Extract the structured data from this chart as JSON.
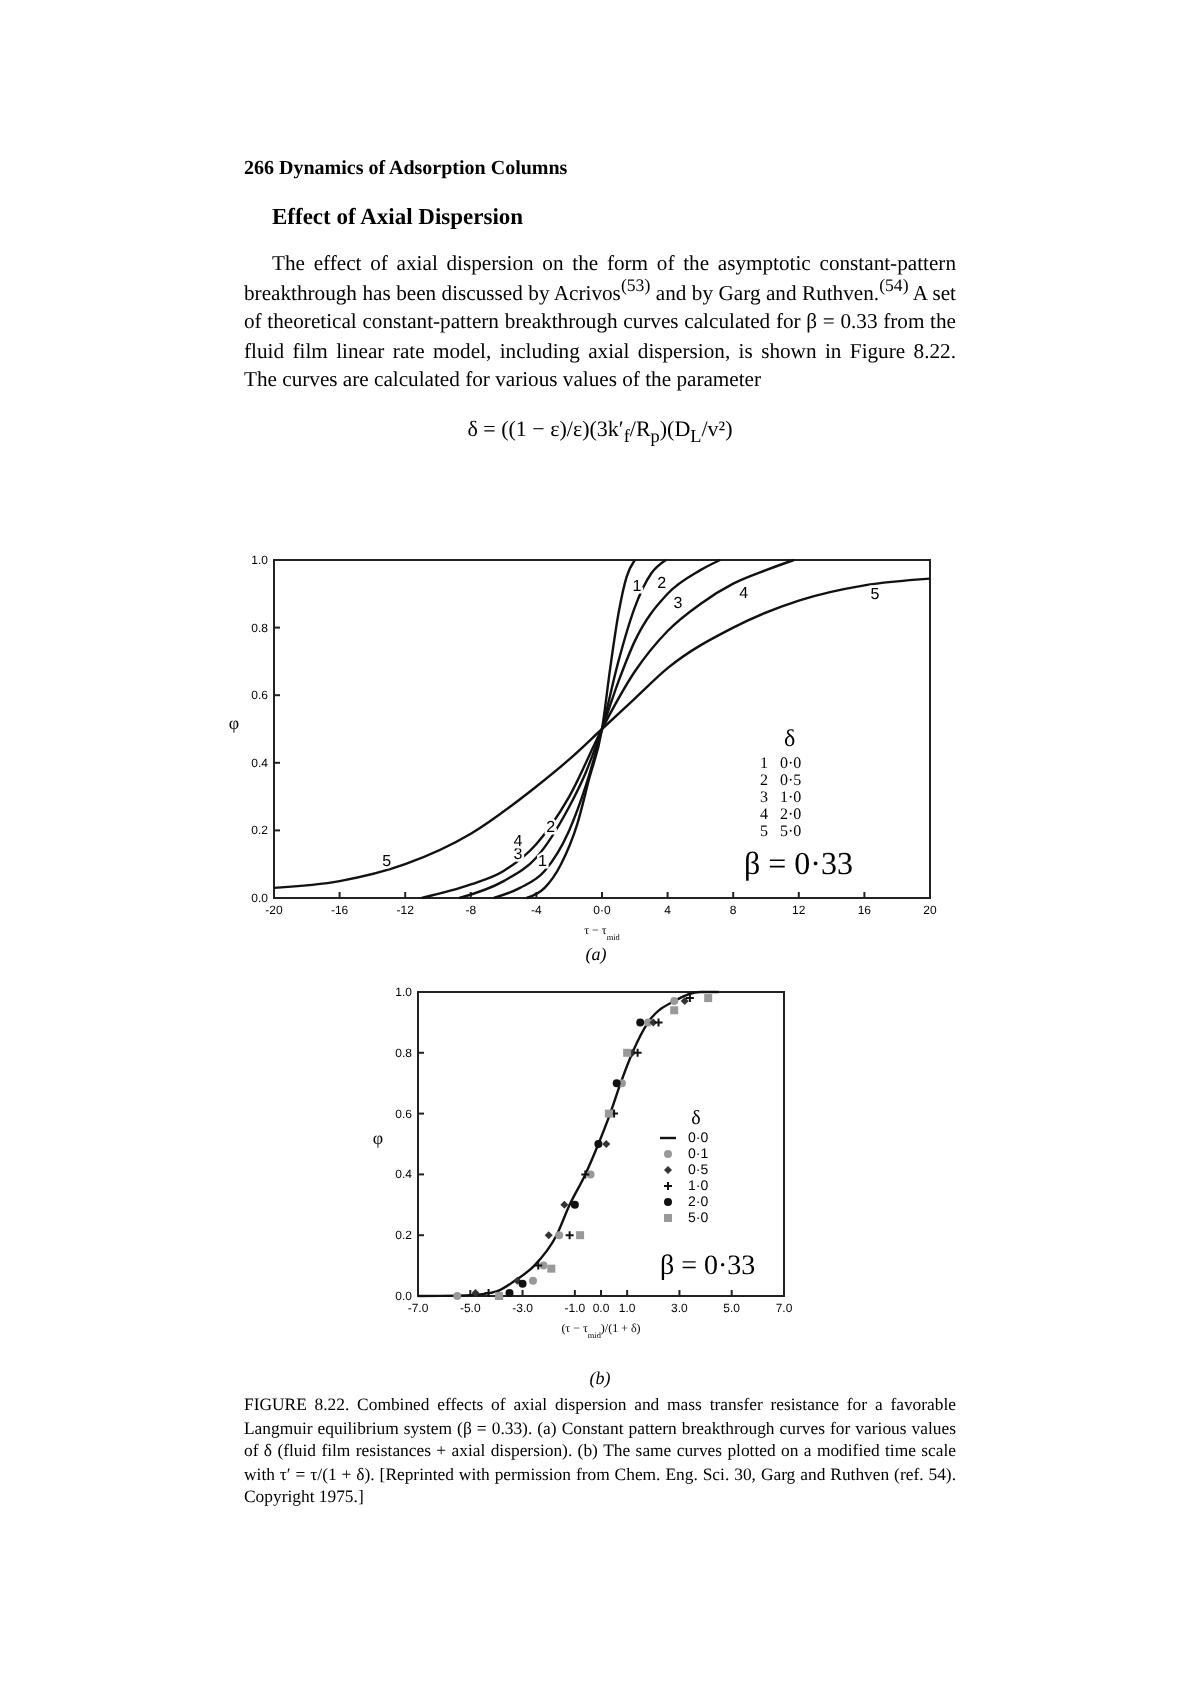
{
  "chart_data": [
    {
      "type": "line",
      "xlabel": "τ − τ$_{mid}$",
      "ylabel": "φ",
      "xlim": [
        -20,
        20
      ],
      "ylim": [
        0,
        1
      ],
      "xticks": [
        -20,
        -16,
        -12,
        -8,
        -4,
        {
          "value": 0,
          "label": "0·0"
        },
        4,
        8,
        12,
        16,
        20
      ],
      "yticks": [
        {
          "value": 0,
          "label": "0.0"
        },
        {
          "value": 0.2,
          "label": "0.2"
        },
        {
          "value": 0.4,
          "label": "0.4"
        },
        {
          "value": 0.6,
          "label": "0.6"
        },
        {
          "value": 0.8,
          "label": "0.8"
        },
        {
          "value": 1,
          "label": "1.0"
        }
      ],
      "series": [
        {
          "name": "1",
          "color": "#111111",
          "x": [
            -4.6,
            -3.5,
            -2.5,
            -1.5,
            -0.8,
            0,
            0.5,
            1,
            1.5,
            2
          ],
          "values": [
            0,
            0.03,
            0.1,
            0.22,
            0.35,
            0.5,
            0.68,
            0.84,
            0.95,
            1
          ]
        },
        {
          "name": "2",
          "color": "#111111",
          "x": [
            -6.6,
            -5,
            -3.5,
            -2,
            -1,
            0,
            1,
            2,
            3,
            3.9
          ],
          "values": [
            0,
            0.03,
            0.08,
            0.2,
            0.33,
            0.5,
            0.7,
            0.86,
            0.96,
            1
          ]
        },
        {
          "name": "3",
          "color": "#111111",
          "x": [
            -8.7,
            -6,
            -4,
            -2,
            -1,
            0,
            1,
            2,
            4,
            6,
            7.2
          ],
          "values": [
            0,
            0.05,
            0.12,
            0.27,
            0.37,
            0.5,
            0.64,
            0.76,
            0.9,
            0.97,
            1
          ]
        },
        {
          "name": "4",
          "color": "#111111",
          "x": [
            -11,
            -8,
            -6,
            -4,
            -2,
            0,
            2,
            4,
            6,
            8,
            10,
            11.7
          ],
          "values": [
            0,
            0.04,
            0.08,
            0.16,
            0.3,
            0.5,
            0.67,
            0.79,
            0.87,
            0.93,
            0.97,
            1
          ]
        },
        {
          "name": "5",
          "color": "#111111",
          "x": [
            -20,
            -16,
            -12,
            -8,
            -4,
            -2,
            0,
            2,
            4,
            8,
            12,
            16,
            20
          ],
          "values": [
            0.03,
            0.05,
            0.1,
            0.19,
            0.33,
            0.41,
            0.5,
            0.59,
            0.68,
            0.8,
            0.88,
            0.925,
            0.945
          ]
        }
      ],
      "annotations": [
        "266 Dynamics of Adsorption Columns",
        "Effect of Axial Dispersion",
        "The effect of axial dispersion on the form of the asymptotic constant-pattern breakthrough has been discussed by Acrivos$^{(53)}$ and by Garg and Ruthven.$^{(54)}$ A set of theoretical constant-pattern breakthrough curves calculated for β = 0.33 from the fluid film linear rate model, including axial dispersion, is shown in Figure 8.22. The curves are calculated for various values of the parameter",
        "δ = ((1 − ε)/ε)(3k′$_{f}$/R$_{p}$)(D$_{L}$/v²)",
        "δ",
        "1   0·0",
        "2   0·5",
        "3   1·0",
        "4   2·0",
        "5   5·0",
        "β = 0·33",
        "(a)"
      ]
    },
    {
      "type": "line",
      "xlabel": "(τ − τ$_{mid}$)/(1 + δ)",
      "ylabel": "φ",
      "xlim": [
        -7,
        7
      ],
      "ylim": [
        0,
        1
      ],
      "xticks": [
        {
          "value": -7,
          "label": "-7.0"
        },
        {
          "value": -5,
          "label": "-5.0"
        },
        {
          "value": -3,
          "label": "-3.0"
        },
        {
          "value": -1,
          "label": "-1.0"
        },
        {
          "value": 0,
          "label": "0.0"
        },
        {
          "value": 1,
          "label": "1.0"
        },
        {
          "value": 3,
          "label": "3.0"
        },
        {
          "value": 5,
          "label": "5.0"
        },
        {
          "value": 7,
          "label": "7.0"
        }
      ],
      "yticks": [
        {
          "value": 0,
          "label": "0.0"
        },
        {
          "value": 0.2,
          "label": "0.2"
        },
        {
          "value": 0.4,
          "label": "0.4"
        },
        {
          "value": 0.6,
          "label": "0.6"
        },
        {
          "value": 0.8,
          "label": "0.8"
        },
        {
          "value": 1,
          "label": "1.0"
        }
      ],
      "legend": "right",
      "legend_title": "δ",
      "series": [
        {
          "name": "0·0",
          "color": "#111111",
          "x": [
            -7,
            -5,
            -4,
            -3.3,
            -2.55,
            -1.7,
            -1.2,
            -0.6,
            -0.1,
            0.35,
            0.75,
            1.2,
            1.8,
            2.8,
            3.8,
            4.5
          ],
          "values": [
            0,
            0.003,
            0.015,
            0.05,
            0.1,
            0.2,
            0.3,
            0.4,
            0.5,
            0.6,
            0.7,
            0.8,
            0.9,
            0.97,
            1,
            1
          ]
        },
        {
          "name": "0·1",
          "type": "scatter",
          "marker": "circle",
          "color": "#999999",
          "x": [
            -5.5,
            -2.6,
            -2.2,
            -1.6,
            -0.4,
            0.8,
            1.8,
            2.8
          ],
          "values": [
            0,
            0.05,
            0.1,
            0.2,
            0.4,
            0.7,
            0.9,
            0.97
          ]
        },
        {
          "name": "0·5",
          "type": "scatter",
          "marker": "diamond",
          "color": "#333333",
          "x": [
            -4.8,
            -3.2,
            -2.0,
            -1.4,
            0.2,
            1.2,
            2.0,
            3.2
          ],
          "values": [
            0.01,
            0.05,
            0.2,
            0.3,
            0.5,
            0.8,
            0.9,
            0.97
          ]
        },
        {
          "name": "1·0",
          "type": "scatter",
          "marker": "cross",
          "color": "#111111",
          "x": [
            -4.3,
            -2.4,
            -1.2,
            -0.6,
            0.5,
            1.4,
            2.2,
            3.4
          ],
          "values": [
            0.01,
            0.1,
            0.2,
            0.4,
            0.6,
            0.8,
            0.9,
            0.98
          ]
        },
        {
          "name": "2·0",
          "type": "scatter",
          "marker": "circle",
          "color": "#111111",
          "x": [
            -3.5,
            -3.0,
            -1.0,
            -0.1,
            0.6,
            1.5
          ],
          "values": [
            0.01,
            0.04,
            0.3,
            0.5,
            0.7,
            0.9
          ]
        },
        {
          "name": "5·0",
          "type": "scatter",
          "marker": "square",
          "color": "#999999",
          "x": [
            -3.9,
            -1.9,
            -0.8,
            0.3,
            1.0,
            2.8,
            4.1
          ],
          "values": [
            0,
            0.09,
            0.2,
            0.6,
            0.8,
            0.94,
            0.98
          ]
        }
      ],
      "annotations": [
        "β = 0·33",
        "(b)",
        "FIGURE 8.22. Combined effects of axial dispersion and mass transfer resistance for a favorable Langmuir equilibrium system (β = 0.33). (a) Constant pattern breakthrough curves for various values of δ (fluid film resistances + axial dispersion). (b) The same curves plotted on a modified time scale with τ′ = τ/(1 + δ). [Reprinted with permission from Chem. Eng. Sci. 30, Garg and Ruthven (ref. 54). Copyright 1975.]"
      ]
    }
  ]
}
